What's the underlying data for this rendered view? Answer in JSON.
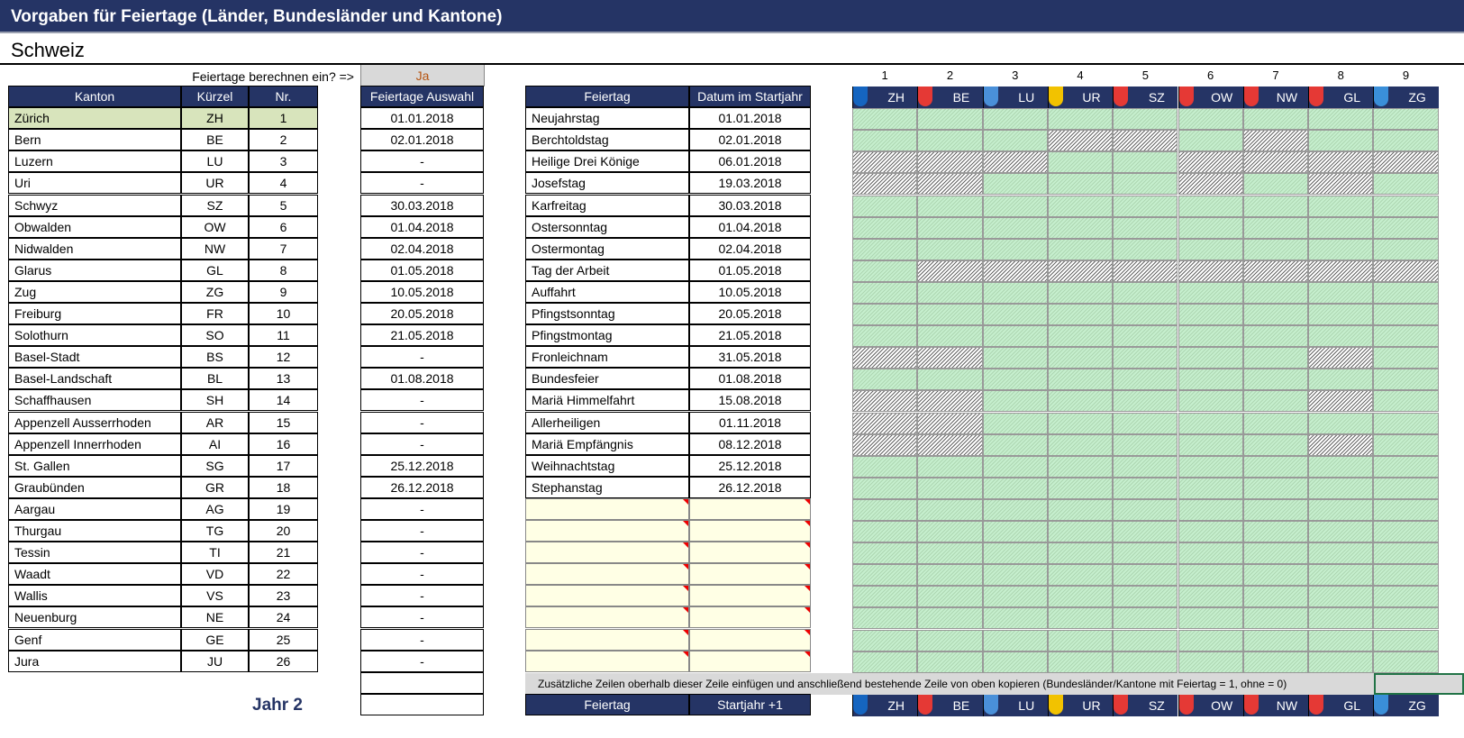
{
  "title": "Vorgaben für Feiertage  (Länder, Bundesländer und Kantone)",
  "subtitle": "Schweiz",
  "calc_prompt": "Feiertage berechnen ein? =>",
  "calc_value": "Ja",
  "kanton_headers": {
    "kanton": "Kanton",
    "kuerzel": "Kürzel",
    "nr": "Nr."
  },
  "auswahl_header": "Feiertage Auswahl",
  "feiertag_headers": {
    "feiertag": "Feiertag",
    "datum": "Datum im Startjahr"
  },
  "kantone": [
    [
      "Zürich",
      "ZH",
      "1"
    ],
    [
      "Bern",
      "BE",
      "2"
    ],
    [
      "Luzern",
      "LU",
      "3"
    ],
    [
      "Uri",
      "UR",
      "4"
    ],
    [
      "Schwyz",
      "SZ",
      "5"
    ],
    [
      "Obwalden",
      "OW",
      "6"
    ],
    [
      "Nidwalden",
      "NW",
      "7"
    ],
    [
      "Glarus",
      "GL",
      "8"
    ],
    [
      "Zug",
      "ZG",
      "9"
    ],
    [
      "Freiburg",
      "FR",
      "10"
    ],
    [
      "Solothurn",
      "SO",
      "11"
    ],
    [
      "Basel-Stadt",
      "BS",
      "12"
    ],
    [
      "Basel-Landschaft",
      "BL",
      "13"
    ],
    [
      "Schaffhausen",
      "SH",
      "14"
    ],
    [
      "Appenzell Ausserrhoden",
      "AR",
      "15"
    ],
    [
      "Appenzell Innerrhoden",
      "AI",
      "16"
    ],
    [
      "St. Gallen",
      "SG",
      "17"
    ],
    [
      "Graubünden",
      "GR",
      "18"
    ],
    [
      "Aargau",
      "AG",
      "19"
    ],
    [
      "Thurgau",
      "TG",
      "20"
    ],
    [
      "Tessin",
      "TI",
      "21"
    ],
    [
      "Waadt",
      "VD",
      "22"
    ],
    [
      "Wallis",
      "VS",
      "23"
    ],
    [
      "Neuenburg",
      "NE",
      "24"
    ],
    [
      "Genf",
      "GE",
      "25"
    ],
    [
      "Jura",
      "JU",
      "26"
    ]
  ],
  "selected_kanton": "Zürich",
  "auswahl": [
    "01.01.2018",
    "02.01.2018",
    "-",
    "-",
    "30.03.2018",
    "01.04.2018",
    "02.04.2018",
    "01.05.2018",
    "10.05.2018",
    "20.05.2018",
    "21.05.2018",
    "-",
    "01.08.2018",
    "-",
    "-",
    "-",
    "25.12.2018",
    "26.12.2018",
    "-",
    "-",
    "-",
    "-",
    "-",
    "-",
    "-",
    "-"
  ],
  "feiertage": [
    [
      "Neujahrstag",
      "01.01.2018"
    ],
    [
      "Berchtoldstag",
      "02.01.2018"
    ],
    [
      "Heilige Drei Könige",
      "06.01.2018"
    ],
    [
      "Josefstag",
      "19.03.2018"
    ],
    [
      "Karfreitag",
      "30.03.2018"
    ],
    [
      "Ostersonntag",
      "01.04.2018"
    ],
    [
      "Ostermontag",
      "02.04.2018"
    ],
    [
      "Tag der Arbeit",
      "01.05.2018"
    ],
    [
      "Auffahrt",
      "10.05.2018"
    ],
    [
      "Pfingstsonntag",
      "20.05.2018"
    ],
    [
      "Pfingstmontag",
      "21.05.2018"
    ],
    [
      "Fronleichnam",
      "31.05.2018"
    ],
    [
      "Bundesfeier",
      "01.08.2018"
    ],
    [
      "Mariä Himmelfahrt",
      "15.08.2018"
    ],
    [
      "Allerheiligen",
      "01.11.2018"
    ],
    [
      "Mariä Empfängnis",
      "08.12.2018"
    ],
    [
      "Weihnachtstag",
      "25.12.2018"
    ],
    [
      "Stephanstag",
      "26.12.2018"
    ]
  ],
  "empty_rows": 8,
  "grid_columns": [
    {
      "num": "1",
      "code": "ZH",
      "crest": "#1565c0"
    },
    {
      "num": "2",
      "code": "BE",
      "crest": "#e53935"
    },
    {
      "num": "3",
      "code": "LU",
      "crest": "#4a90d9"
    },
    {
      "num": "4",
      "code": "UR",
      "crest": "#f2c200"
    },
    {
      "num": "5",
      "code": "SZ",
      "crest": "#e53935"
    },
    {
      "num": "6",
      "code": "OW",
      "crest": "#e53935"
    },
    {
      "num": "7",
      "code": "NW",
      "crest": "#e53935"
    },
    {
      "num": "8",
      "code": "GL",
      "crest": "#e53935"
    },
    {
      "num": "9",
      "code": "ZG",
      "crest": "#3a8fd9"
    }
  ],
  "grid_values": [
    [
      1,
      1,
      1,
      1,
      1,
      1,
      1,
      1,
      1
    ],
    [
      1,
      1,
      1,
      0,
      0,
      1,
      0,
      1,
      1
    ],
    [
      0,
      0,
      0,
      1,
      1,
      0,
      0,
      0,
      0
    ],
    [
      0,
      0,
      1,
      1,
      1,
      0,
      1,
      0,
      1
    ],
    [
      1,
      1,
      1,
      1,
      1,
      1,
      1,
      1,
      1
    ],
    [
      1,
      1,
      1,
      1,
      1,
      1,
      1,
      1,
      1
    ],
    [
      1,
      1,
      1,
      1,
      1,
      1,
      1,
      1,
      1
    ],
    [
      1,
      0,
      0,
      0,
      0,
      0,
      0,
      0,
      0
    ],
    [
      1,
      1,
      1,
      1,
      1,
      1,
      1,
      1,
      1
    ],
    [
      1,
      1,
      1,
      1,
      1,
      1,
      1,
      1,
      1
    ],
    [
      1,
      1,
      1,
      1,
      1,
      1,
      1,
      1,
      1
    ],
    [
      0,
      0,
      1,
      1,
      1,
      1,
      1,
      0,
      1
    ],
    [
      1,
      1,
      1,
      1,
      1,
      1,
      1,
      1,
      1
    ],
    [
      0,
      0,
      1,
      1,
      1,
      1,
      1,
      0,
      1
    ],
    [
      0,
      0,
      1,
      1,
      1,
      1,
      1,
      1,
      1
    ],
    [
      0,
      0,
      1,
      1,
      1,
      1,
      1,
      0,
      1
    ],
    [
      1,
      1,
      1,
      1,
      1,
      1,
      1,
      1,
      1
    ],
    [
      1,
      1,
      1,
      1,
      1,
      1,
      1,
      1,
      1
    ],
    [
      1,
      1,
      1,
      1,
      1,
      1,
      1,
      1,
      1
    ],
    [
      1,
      1,
      1,
      1,
      1,
      1,
      1,
      1,
      1
    ],
    [
      1,
      1,
      1,
      1,
      1,
      1,
      1,
      1,
      1
    ],
    [
      1,
      1,
      1,
      1,
      1,
      1,
      1,
      1,
      1
    ],
    [
      1,
      1,
      1,
      1,
      1,
      1,
      1,
      1,
      1
    ],
    [
      1,
      1,
      1,
      1,
      1,
      1,
      1,
      1,
      1
    ],
    [
      1,
      1,
      1,
      1,
      1,
      1,
      1,
      1,
      1
    ],
    [
      1,
      1,
      1,
      1,
      1,
      1,
      1,
      1,
      1
    ]
  ],
  "note": "Zusätzliche Zeilen oberhalb dieser Zeile einfügen und anschließend bestehende Zeile von oben kopieren (Bundesländer/Kantone mit Feiertag = 1, ohne = 0)",
  "year2": {
    "label": "Jahr 2",
    "feiertag_header": "Feiertag",
    "datum_header": "Startjahr +1"
  }
}
